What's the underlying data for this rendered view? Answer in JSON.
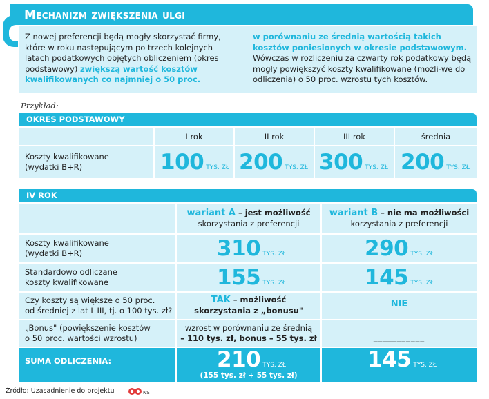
{
  "title": "Mechanizm zwiększenia ulgi",
  "intro": {
    "left_plain": "Z nowej preferencji będą mogły skorzystać firmy, które w roku następującym po trzech kolejnych latach podatkowych objętych obliczeniem (okres podstawowy) ",
    "left_highlight": "zwiększą wartość kosztów kwalifikowanych co najmniej o 50 proc.",
    "right_highlight": "w porównaniu ze średnią wartością takich kosztów poniesionych w okresie podstawowym.",
    "right_plain": " Wówczas w rozliczeniu za czwarty rok podatkowy będą mogły powiększyć koszty kwalifikowane (możli-we do odliczenia) o 50 proc. wzrostu tych kosztów."
  },
  "example_label": "Przykład:",
  "base_period": {
    "header": "OKRES PODSTAWOWY",
    "columns": [
      "I rok",
      "II rok",
      "III rok",
      "średnia"
    ],
    "row_label_1": "Koszty kwalifikowane",
    "row_label_2": "(wydatki B+R)",
    "values": [
      "100",
      "200",
      "300",
      "200"
    ],
    "unit": "TYS. ZŁ"
  },
  "year4": {
    "header": "IV ROK",
    "variant_a_name": "wariant A",
    "variant_a_desc_bold": " – jest możliwość",
    "variant_a_desc_2": "skorzystania z preferencji",
    "variant_b_name": "wariant  B",
    "variant_b_desc_bold": " – nie ma możliwości",
    "variant_b_desc_2": "korzystania z preferencji",
    "rows": [
      {
        "label_1": "Koszty kwalifikowane",
        "label_2": "(wydatki B+R)",
        "a": "310",
        "b": "290"
      },
      {
        "label_1": "Standardowo odliczane",
        "label_2": "koszty kwalifikowane",
        "a": "155",
        "b": "145"
      }
    ],
    "question_label_1": "Czy koszty są większe o 50 proc.",
    "question_label_2": "od średniej z lat I–III, tj. o 100 tys. zł?",
    "question_a_tak": "TAK",
    "question_a_rest_1": " – możliwość",
    "question_a_rest_2": "skorzystania z „bonusu\"",
    "question_b": "NIE",
    "bonus_label_1": "„Bonus\" (powiększenie kosztów",
    "bonus_label_2": "o 50 proc. wartości wzrostu)",
    "bonus_a_1": "wzrost w porównaniu ze średnią",
    "bonus_a_2": "– 110 tys. zł, bonus – 55 tys. zł",
    "bonus_b": "___________",
    "sum_label": "SUMA ODLICZENIA:",
    "sum_a": "210",
    "sum_a_detail": "(155 tys. zł + 55 tys. zł)",
    "sum_b": "145",
    "unit": "TYS. ZŁ"
  },
  "footer": {
    "source": "Źródło: Uzasadnienie do projektu",
    "logo_text": "NS"
  },
  "colors": {
    "accent": "#1fb7dc",
    "light": "#d5f1f9"
  }
}
